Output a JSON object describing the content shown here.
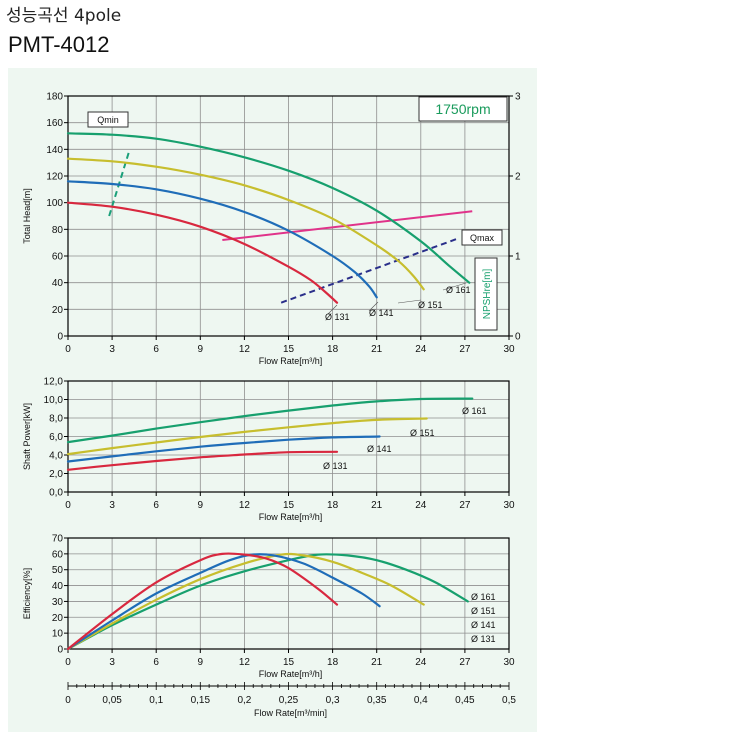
{
  "header": {
    "title": "성능곡선 4pole",
    "model": "PMT-4012"
  },
  "colors": {
    "d161": "#17a06e",
    "d151": "#c7be2e",
    "d141": "#1f6db8",
    "d131": "#d8283f",
    "system": "#e0338a",
    "qmax": "#2a2f8a",
    "qmin": "#1aa07a",
    "grid": "#8f8f8f"
  },
  "chart_data": [
    {
      "type": "line",
      "id": "head",
      "title": "",
      "speed_label": "1750rpm",
      "xlabel": "Flow Rate[m³/h]",
      "ylabel": "Total Head[m]",
      "y2label": "NPSHre[m]",
      "xlim": [
        0,
        30
      ],
      "ylim": [
        0,
        180
      ],
      "y2lim": [
        0,
        3
      ],
      "xticks": [
        "0",
        "3",
        "6",
        "9",
        "12",
        "15",
        "18",
        "21",
        "24",
        "27",
        "30"
      ],
      "yticks": [
        "0",
        "20",
        "40",
        "60",
        "80",
        "100",
        "120",
        "140",
        "160",
        "180"
      ],
      "y2ticks": [
        "0",
        "1",
        "2",
        "3"
      ],
      "grid": true,
      "series": [
        {
          "name": "Ø 161",
          "color_key": "d161",
          "x": [
            0,
            3,
            6,
            9,
            12,
            15,
            18,
            21,
            24,
            26,
            27.3
          ],
          "y": [
            152,
            151,
            148,
            142,
            134,
            124,
            111,
            94,
            71,
            52,
            40
          ]
        },
        {
          "name": "Ø 151",
          "color_key": "d151",
          "x": [
            0,
            3,
            6,
            9,
            12,
            15,
            18,
            21,
            22.5,
            23.5,
            24.2
          ],
          "y": [
            133,
            131,
            127,
            121,
            113,
            102,
            88,
            68,
            56,
            45,
            35
          ]
        },
        {
          "name": "Ø 141",
          "color_key": "d141",
          "x": [
            0,
            3,
            6,
            9,
            12,
            15,
            18,
            19.5,
            20.5,
            21
          ],
          "y": [
            116,
            114,
            110,
            103,
            93,
            79,
            60,
            48,
            37,
            29
          ]
        },
        {
          "name": "Ø 131",
          "color_key": "d131",
          "x": [
            0,
            3,
            6,
            9,
            12,
            15,
            16.5,
            17.5,
            18.3
          ],
          "y": [
            100,
            97,
            91,
            82,
            69,
            52,
            42,
            33,
            25
          ]
        }
      ],
      "npshre": {
        "color_key": "system",
        "x": [
          10.5,
          27.5
        ],
        "y2": [
          1.2,
          1.56
        ]
      },
      "qmin_line": {
        "label": "Qmin",
        "color_key": "qmin",
        "x": [
          2.8,
          4.2
        ],
        "y": [
          90,
          140
        ]
      },
      "qmax_line": {
        "label": "Qmax",
        "color_key": "qmax",
        "x": [
          14.5,
          26.5
        ],
        "y": [
          25,
          73
        ]
      }
    },
    {
      "type": "line",
      "id": "power",
      "xlabel": "Flow Rate[m³/h]",
      "ylabel": "Shaft Power[kW]",
      "xlim": [
        0,
        30
      ],
      "ylim": [
        0,
        12
      ],
      "xticks": [
        "0",
        "3",
        "6",
        "9",
        "12",
        "15",
        "18",
        "21",
        "24",
        "27",
        "30"
      ],
      "yticks": [
        "0,0",
        "2,0",
        "4,0",
        "6,0",
        "8,0",
        "10,0",
        "12,0"
      ],
      "grid": true,
      "series": [
        {
          "name": "Ø 161",
          "color_key": "d161",
          "x": [
            0,
            3,
            6,
            9,
            12,
            15,
            18,
            21,
            24,
            27.5
          ],
          "y": [
            5.4,
            6.1,
            6.85,
            7.55,
            8.2,
            8.8,
            9.35,
            9.8,
            10.05,
            10.1
          ]
        },
        {
          "name": "Ø 151",
          "color_key": "d151",
          "x": [
            0,
            3,
            6,
            9,
            12,
            15,
            18,
            21,
            24.4
          ],
          "y": [
            4.1,
            4.75,
            5.35,
            5.95,
            6.5,
            7.0,
            7.45,
            7.8,
            7.95
          ]
        },
        {
          "name": "Ø 141",
          "color_key": "d141",
          "x": [
            0,
            3,
            6,
            9,
            12,
            15,
            18,
            21.2
          ],
          "y": [
            3.3,
            3.85,
            4.4,
            4.9,
            5.3,
            5.65,
            5.9,
            6.0
          ]
        },
        {
          "name": "Ø 131",
          "color_key": "d131",
          "x": [
            0,
            3,
            6,
            9,
            12,
            15,
            18.3
          ],
          "y": [
            2.4,
            2.9,
            3.35,
            3.75,
            4.05,
            4.3,
            4.35
          ]
        }
      ]
    },
    {
      "type": "line",
      "id": "efficiency",
      "xlabel": "Flow Rate[m³/h]",
      "ylabel": "Efficiency[%]",
      "xlim": [
        0,
        30
      ],
      "ylim": [
        0,
        70
      ],
      "xticks": [
        "0",
        "3",
        "6",
        "9",
        "12",
        "15",
        "18",
        "21",
        "24",
        "27",
        "30"
      ],
      "yticks": [
        "0",
        "10",
        "20",
        "30",
        "40",
        "50",
        "60",
        "70"
      ],
      "x2label": "Flow Rate[m³/min]",
      "x2ticks": [
        "0",
        "0,05",
        "0,1",
        "0,15",
        "0,2",
        "0,25",
        "0,3",
        "0,35",
        "0,4",
        "0,45",
        "0,5"
      ],
      "grid": true,
      "series": [
        {
          "name": "Ø 161",
          "color_key": "d161",
          "x": [
            0,
            3,
            6,
            9,
            12,
            15,
            17,
            19,
            21,
            23,
            25,
            27.2
          ],
          "y": [
            0,
            15,
            28,
            40,
            49,
            56,
            59.5,
            59,
            56,
            50,
            42,
            30
          ]
        },
        {
          "name": "Ø 151",
          "color_key": "d151",
          "x": [
            0,
            3,
            6,
            9,
            12,
            14.5,
            16,
            18,
            20,
            22,
            24.2
          ],
          "y": [
            0,
            16,
            31,
            44,
            54,
            59.5,
            59,
            55,
            48,
            40,
            28
          ]
        },
        {
          "name": "Ø 141",
          "color_key": "d141",
          "x": [
            0,
            3,
            6,
            9,
            11,
            12.5,
            14,
            16,
            18,
            20,
            21.2
          ],
          "y": [
            0,
            18,
            35,
            48,
            56,
            59.5,
            59,
            54,
            45,
            35,
            27
          ]
        },
        {
          "name": "Ø 131",
          "color_key": "d131",
          "x": [
            0,
            3,
            6,
            9,
            10.5,
            12,
            13.5,
            15,
            17,
            18.3
          ],
          "y": [
            0,
            22,
            42,
            56,
            60,
            59.5,
            57,
            51,
            38,
            28
          ]
        }
      ]
    }
  ]
}
